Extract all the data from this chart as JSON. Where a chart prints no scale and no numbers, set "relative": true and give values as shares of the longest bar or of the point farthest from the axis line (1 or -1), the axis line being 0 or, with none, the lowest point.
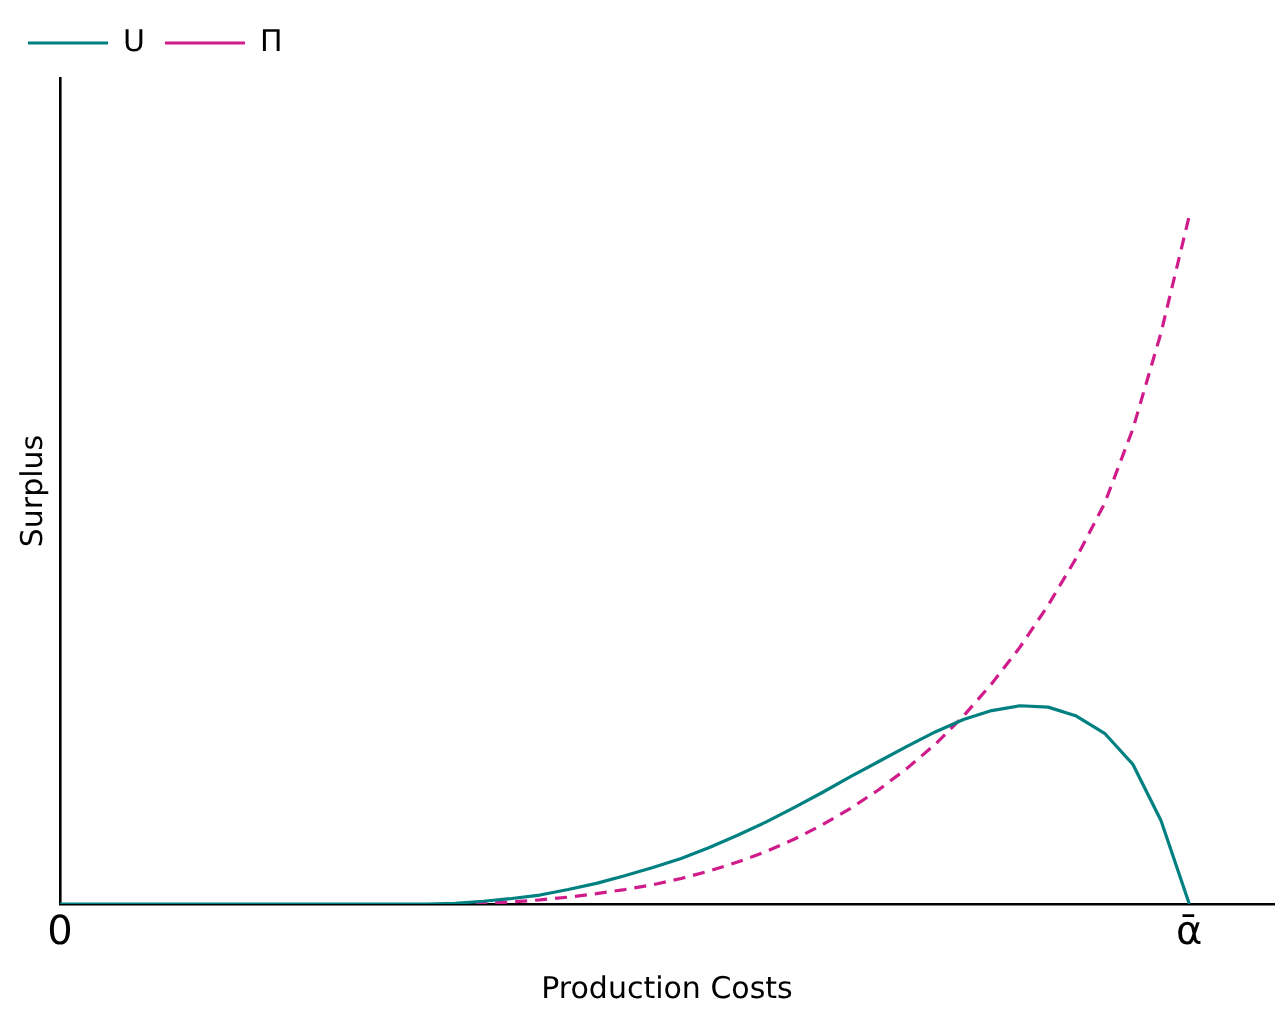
{
  "chart_data": {
    "type": "line",
    "xlabel": "Production Costs",
    "ylabel": "Surplus",
    "relative": true,
    "grid": false,
    "legend": "top left",
    "marker": "none",
    "categories": [
      "0",
      null,
      null,
      null,
      null,
      null,
      null,
      null,
      null,
      null,
      null,
      null,
      null,
      null,
      null,
      null,
      null,
      null,
      null,
      null,
      null,
      null,
      null,
      null,
      null,
      null,
      null,
      null,
      null,
      null,
      null,
      null,
      null,
      null,
      null,
      null,
      null,
      null,
      null,
      null,
      "ᾱ",
      null,
      null,
      null
    ],
    "series": [
      {
        "name": "U",
        "color": "#008080",
        "line_style": "solid",
        "values": [
          0,
          0,
          0,
          0,
          0,
          0,
          0,
          0,
          0,
          0,
          0,
          0,
          0,
          0,
          0.001,
          0.004,
          0.008,
          0.013,
          0.021,
          0.03,
          0.041,
          0.053,
          0.066,
          0.082,
          0.1,
          0.119,
          0.14,
          0.162,
          0.185,
          0.207,
          0.229,
          0.25,
          0.268,
          0.281,
          0.288,
          0.286,
          0.273,
          0.248,
          0.203,
          0.121,
          0,
          null,
          null,
          null
        ]
      },
      {
        "name": "Π",
        "color": "#d01c8b",
        "line_style": "dashed",
        "values": [
          null,
          null,
          null,
          null,
          null,
          null,
          null,
          null,
          null,
          null,
          null,
          null,
          null,
          null,
          0,
          0.001,
          0.003,
          0.006,
          0.01,
          0.015,
          0.021,
          0.028,
          0.037,
          0.048,
          0.061,
          0.076,
          0.094,
          0.115,
          0.139,
          0.166,
          0.197,
          0.232,
          0.273,
          0.32,
          0.373,
          0.434,
          0.503,
          0.582,
          0.69,
          0.83,
          1,
          null,
          null,
          null
        ]
      }
    ]
  }
}
